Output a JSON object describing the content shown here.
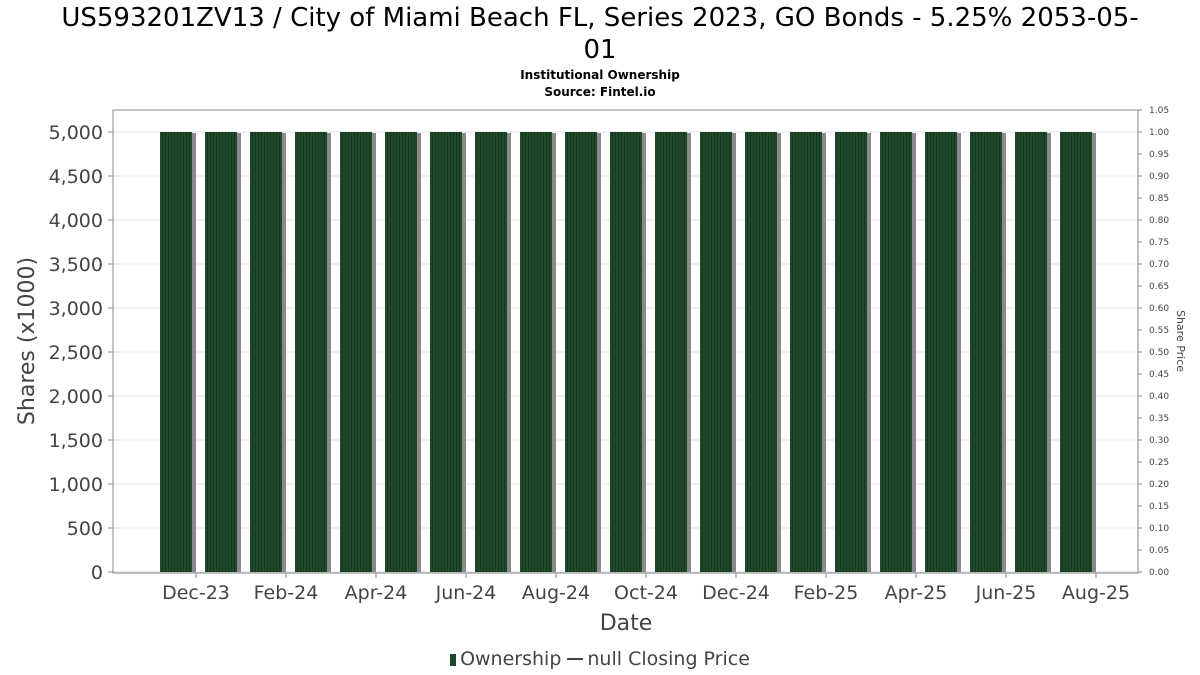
{
  "header": {
    "title_line1": "US593201ZV13 / City of Miami Beach FL, Series 2023, GO Bonds - 5.25% 2053-05-",
    "title_line2": "01",
    "subtitle1": "Institutional Ownership",
    "subtitle2": "Source: Fintel.io"
  },
  "legend": {
    "ownership_label": "Ownership",
    "price_label": "null Closing Price"
  },
  "colors": {
    "bar": "#1e4a2a",
    "bar_shadow": "#8a8a8a",
    "grid": "#e0e0e0"
  },
  "chart_data": {
    "type": "bar",
    "xlabel": "Date",
    "ylabel": "Shares (x1000)",
    "y2label": "Share Price",
    "ylim": [
      0,
      5250
    ],
    "y2lim": [
      0,
      1.05
    ],
    "y_ticks": [
      "0",
      "500",
      "1,000",
      "1,500",
      "2,000",
      "2,500",
      "3,000",
      "3,500",
      "4,000",
      "4,500",
      "5,000"
    ],
    "y2_ticks": [
      "0.00",
      "0.05",
      "0.10",
      "0.15",
      "0.20",
      "0.25",
      "0.30",
      "0.35",
      "0.40",
      "0.45",
      "0.50",
      "0.55",
      "0.60",
      "0.65",
      "0.70",
      "0.75",
      "0.80",
      "0.85",
      "0.90",
      "0.95",
      "1.00",
      "1.05"
    ],
    "x_ticks": [
      "Dec-23",
      "Feb-24",
      "Apr-24",
      "Jun-24",
      "Aug-24",
      "Oct-24",
      "Dec-24",
      "Feb-25",
      "Apr-25",
      "Jun-25",
      "Aug-25"
    ],
    "categories": [
      "Dec-23",
      "Jan-24",
      "Feb-24",
      "Mar-24",
      "Apr-24",
      "May-24",
      "Jun-24",
      "Jul-24",
      "Aug-24",
      "Sep-24",
      "Oct-24",
      "Nov-24",
      "Dec-24",
      "Jan-25",
      "Feb-25",
      "Mar-25",
      "Apr-25",
      "May-25",
      "Jun-25",
      "Jul-25",
      "Aug-25"
    ],
    "series": [
      {
        "name": "Ownership",
        "values": [
          5000,
          5000,
          5000,
          5000,
          5000,
          5000,
          5000,
          5000,
          5000,
          5000,
          5000,
          5000,
          5000,
          5000,
          5000,
          5000,
          5000,
          5000,
          5000,
          5000,
          5000
        ]
      }
    ],
    "grid": true,
    "legend_position": "bottom"
  }
}
